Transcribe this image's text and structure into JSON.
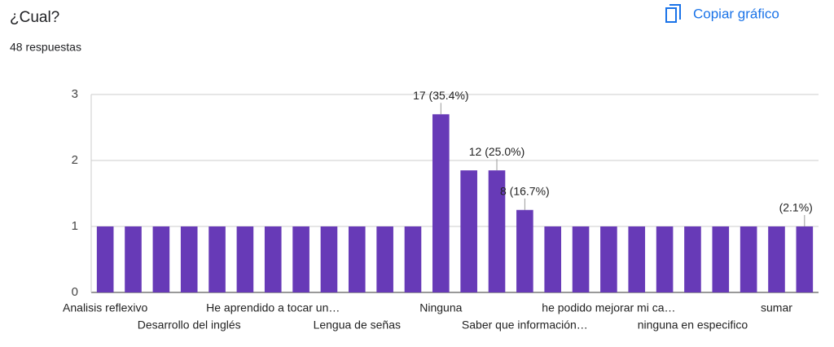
{
  "header": {
    "title": "¿Cual?",
    "subtitle": "48 respuestas",
    "button": "Copiar gráfico"
  },
  "chart_data": {
    "type": "bar",
    "color": "#673ab7",
    "categories": [
      "Analisis reflexivo",
      null,
      null,
      "Desarrollo del inglés",
      null,
      null,
      "He aprendido a tocar un…",
      null,
      null,
      "Lengua de señas",
      null,
      null,
      "Ninguna",
      null,
      null,
      "Saber que información…",
      null,
      null,
      "he podido mejorar mi ca…",
      null,
      null,
      "ninguna en especifico",
      null,
      null,
      "sumar",
      null
    ],
    "values": [
      1,
      1,
      1,
      1,
      1,
      1,
      1,
      1,
      1,
      1,
      1,
      1,
      2.7,
      1.85,
      1.85,
      1.25,
      1,
      1,
      1,
      1,
      1,
      1,
      1,
      1,
      1,
      1
    ],
    "annotations": [
      {
        "index": 12,
        "text": "17 (35.4%)"
      },
      {
        "index": 14,
        "text": "12 (25.0%)"
      },
      {
        "index": 15,
        "text": "8 (16.7%)"
      },
      {
        "index": 25,
        "text": "(2.1%)"
      }
    ],
    "ylim": [
      0,
      3
    ],
    "yticks": [
      0,
      1,
      2,
      3
    ],
    "grid": true
  }
}
